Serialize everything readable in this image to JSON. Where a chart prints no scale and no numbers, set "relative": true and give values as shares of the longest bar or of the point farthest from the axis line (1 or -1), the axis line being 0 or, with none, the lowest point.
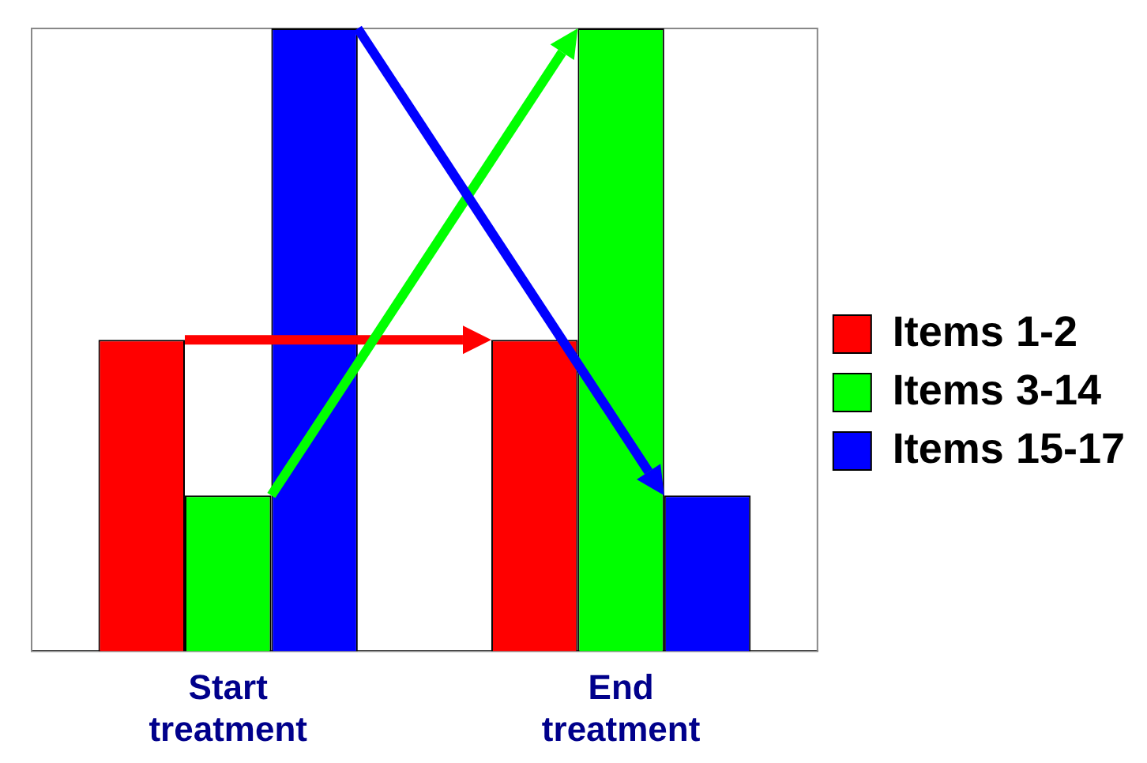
{
  "chart_data": {
    "type": "bar",
    "relative": true,
    "categories": [
      "Start treatment",
      "End treatment"
    ],
    "series": [
      {
        "name": "Items 1-2",
        "color": "#ff0000",
        "values": [
          0.5,
          0.5
        ]
      },
      {
        "name": "Items 3-14",
        "color": "#00ff00",
        "values": [
          0.25,
          1
        ]
      },
      {
        "name": "Items 15-17",
        "color": "#0000ff",
        "values": [
          1,
          0.25
        ]
      }
    ],
    "legend": "right",
    "grid": false
  }
}
